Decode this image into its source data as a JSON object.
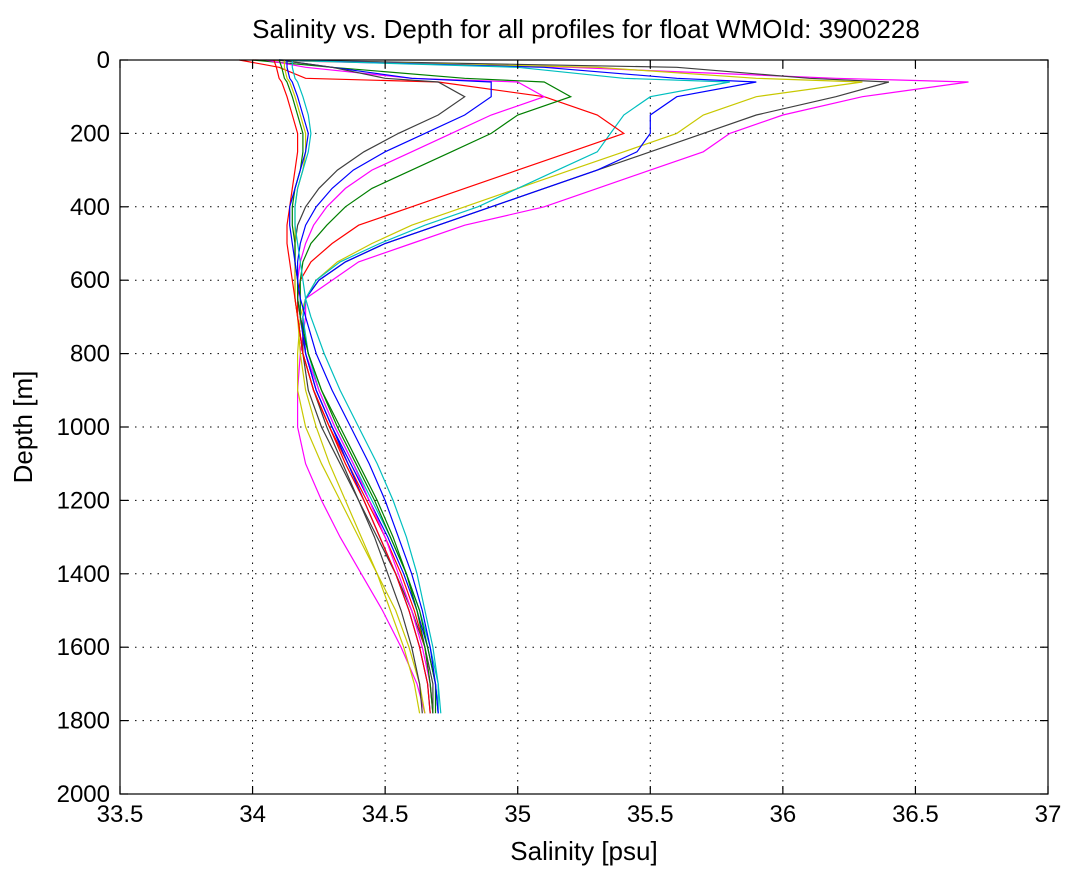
{
  "chart_data": {
    "type": "line",
    "title": "Salinity vs. Depth for all profiles for float WMOId: 3900228",
    "xlabel": "Salinity [psu]",
    "ylabel": "Depth [m]",
    "xlim": [
      33.5,
      37
    ],
    "ylim": [
      0,
      2000
    ],
    "y_reversed": true,
    "xticks": [
      33.5,
      34,
      34.5,
      35,
      35.5,
      36,
      36.5,
      37
    ],
    "xtick_labels": [
      "33.5",
      "34",
      "34.5",
      "35",
      "35.5",
      "36",
      "36.5",
      "37"
    ],
    "yticks": [
      0,
      200,
      400,
      600,
      800,
      1000,
      1200,
      1400,
      1600,
      1800,
      2000
    ],
    "ytick_labels": [
      "0",
      "200",
      "400",
      "600",
      "800",
      "1000",
      "1200",
      "1400",
      "1600",
      "1800",
      "2000"
    ],
    "grid": true,
    "legend": "none",
    "depths": [
      0,
      20,
      50,
      60,
      100,
      150,
      200,
      250,
      300,
      350,
      400,
      450,
      500,
      550,
      600,
      650,
      700,
      800,
      900,
      1000,
      1100,
      1200,
      1300,
      1400,
      1500,
      1600,
      1700,
      1780
    ],
    "series": [
      {
        "color": "#ff00ff",
        "values": [
          34.0,
          35.2,
          36.2,
          36.7,
          36.3,
          36.0,
          35.8,
          35.7,
          35.5,
          35.3,
          35.1,
          34.8,
          34.6,
          34.4,
          34.3,
          34.2,
          34.2,
          34.18,
          34.17,
          34.17,
          34.2,
          34.26,
          34.33,
          34.41,
          34.49,
          34.56,
          34.62,
          34.65
        ]
      },
      {
        "color": "#3f3f3f",
        "values": [
          34.1,
          35.6,
          36.1,
          36.4,
          36.2,
          35.9,
          35.7,
          35.5,
          35.3,
          35.1,
          34.9,
          34.7,
          34.5,
          34.35,
          34.25,
          34.2,
          34.19,
          34.19,
          34.21,
          34.26,
          34.33,
          34.4,
          34.47,
          34.54,
          34.6,
          34.65,
          34.68,
          34.68
        ]
      },
      {
        "color": "#c8c800",
        "values": [
          34.0,
          35.3,
          35.9,
          36.3,
          35.9,
          35.7,
          35.6,
          35.4,
          35.2,
          35.0,
          34.8,
          34.6,
          34.45,
          34.32,
          34.24,
          34.2,
          34.18,
          34.17,
          34.17,
          34.2,
          34.26,
          34.33,
          34.4,
          34.47,
          34.54,
          34.59,
          34.63,
          34.65
        ]
      },
      {
        "color": "#0000ff",
        "values": [
          34.1,
          35.1,
          35.6,
          35.9,
          35.6,
          35.5,
          35.5,
          35.45,
          35.3,
          35.1,
          34.9,
          34.7,
          34.5,
          34.35,
          34.25,
          34.2,
          34.19,
          34.2,
          34.24,
          34.3,
          34.37,
          34.44,
          34.51,
          34.57,
          34.62,
          34.66,
          34.69,
          34.7
        ]
      },
      {
        "color": "#00bfbf",
        "values": [
          34.1,
          35.0,
          35.4,
          35.8,
          35.5,
          35.4,
          35.35,
          35.3,
          35.15,
          35.0,
          34.85,
          34.65,
          34.48,
          34.33,
          34.24,
          34.2,
          34.19,
          34.21,
          34.25,
          34.31,
          34.38,
          34.45,
          34.52,
          34.58,
          34.63,
          34.67,
          34.7,
          34.7
        ]
      },
      {
        "color": "#ff0000",
        "values": [
          33.95,
          34.1,
          34.2,
          34.7,
          35.1,
          35.3,
          35.4,
          35.2,
          35.0,
          34.8,
          34.6,
          34.4,
          34.3,
          34.22,
          34.18,
          34.17,
          34.17,
          34.19,
          34.23,
          34.29,
          34.36,
          34.43,
          34.5,
          34.56,
          34.61,
          34.65,
          34.67,
          34.68
        ]
      },
      {
        "color": "#007f00",
        "values": [
          34.0,
          34.3,
          34.8,
          35.1,
          35.2,
          35.0,
          34.9,
          34.75,
          34.6,
          34.45,
          34.35,
          34.28,
          34.22,
          34.19,
          34.18,
          34.18,
          34.18,
          34.21,
          34.26,
          34.32,
          34.39,
          34.46,
          34.52,
          34.58,
          34.63,
          34.66,
          34.69,
          34.69
        ]
      },
      {
        "color": "#ff00ff",
        "values": [
          34.05,
          34.2,
          34.6,
          35.0,
          35.1,
          34.9,
          34.75,
          34.6,
          34.45,
          34.35,
          34.28,
          34.23,
          34.2,
          34.18,
          34.17,
          34.17,
          34.18,
          34.2,
          34.25,
          34.31,
          34.38,
          34.44,
          34.5,
          34.55,
          34.6,
          34.64,
          34.67,
          34.68
        ]
      },
      {
        "color": "#0000ff",
        "values": [
          34.1,
          34.3,
          34.6,
          34.9,
          34.9,
          34.8,
          34.65,
          34.5,
          34.38,
          34.3,
          34.24,
          34.2,
          34.18,
          34.17,
          34.17,
          34.17,
          34.18,
          34.2,
          34.24,
          34.3,
          34.36,
          34.42,
          34.48,
          34.54,
          34.59,
          34.63,
          34.66,
          34.67
        ]
      },
      {
        "color": "#3f3f3f",
        "values": [
          34.1,
          34.3,
          34.5,
          34.7,
          34.8,
          34.7,
          34.55,
          34.42,
          34.32,
          34.25,
          34.2,
          34.17,
          34.16,
          34.16,
          34.16,
          34.16,
          34.17,
          34.19,
          34.23,
          34.28,
          34.34,
          34.4,
          34.46,
          34.51,
          34.56,
          34.6,
          34.63,
          34.64
        ]
      },
      {
        "color": "#c8c800",
        "values": [
          34.12,
          34.12,
          34.13,
          34.14,
          34.16,
          34.18,
          34.2,
          34.2,
          34.19,
          34.17,
          34.16,
          34.16,
          34.16,
          34.16,
          34.16,
          34.16,
          34.17,
          34.18,
          34.2,
          34.24,
          34.29,
          34.35,
          34.41,
          34.47,
          34.52,
          34.57,
          34.61,
          34.63
        ]
      },
      {
        "color": "#007f00",
        "values": [
          34.1,
          34.11,
          34.12,
          34.13,
          34.15,
          34.17,
          34.19,
          34.19,
          34.18,
          34.16,
          34.15,
          34.15,
          34.16,
          34.16,
          34.17,
          34.17,
          34.18,
          34.21,
          34.26,
          34.33,
          34.4,
          34.47,
          34.53,
          34.58,
          34.62,
          34.65,
          34.67,
          34.68
        ]
      },
      {
        "color": "#ff0000",
        "values": [
          34.08,
          34.09,
          34.1,
          34.11,
          34.13,
          34.15,
          34.17,
          34.17,
          34.16,
          34.15,
          34.14,
          34.13,
          34.13,
          34.14,
          34.15,
          34.16,
          34.17,
          34.19,
          34.23,
          34.29,
          34.35,
          34.42,
          34.48,
          34.54,
          34.59,
          34.63,
          34.66,
          34.67
        ]
      },
      {
        "color": "#0000ff",
        "values": [
          34.13,
          34.13,
          34.14,
          34.15,
          34.17,
          34.19,
          34.21,
          34.2,
          34.18,
          34.16,
          34.14,
          34.14,
          34.15,
          34.16,
          34.17,
          34.18,
          34.2,
          34.24,
          34.3,
          34.37,
          34.44,
          34.5,
          34.55,
          34.6,
          34.64,
          34.67,
          34.69,
          34.7
        ]
      },
      {
        "color": "#00bfbf",
        "values": [
          34.15,
          34.15,
          34.16,
          34.17,
          34.19,
          34.21,
          34.22,
          34.21,
          34.19,
          34.17,
          34.16,
          34.16,
          34.17,
          34.18,
          34.19,
          34.2,
          34.22,
          34.27,
          34.33,
          34.4,
          34.47,
          34.53,
          34.58,
          34.62,
          34.65,
          34.68,
          34.7,
          34.71
        ]
      }
    ]
  }
}
